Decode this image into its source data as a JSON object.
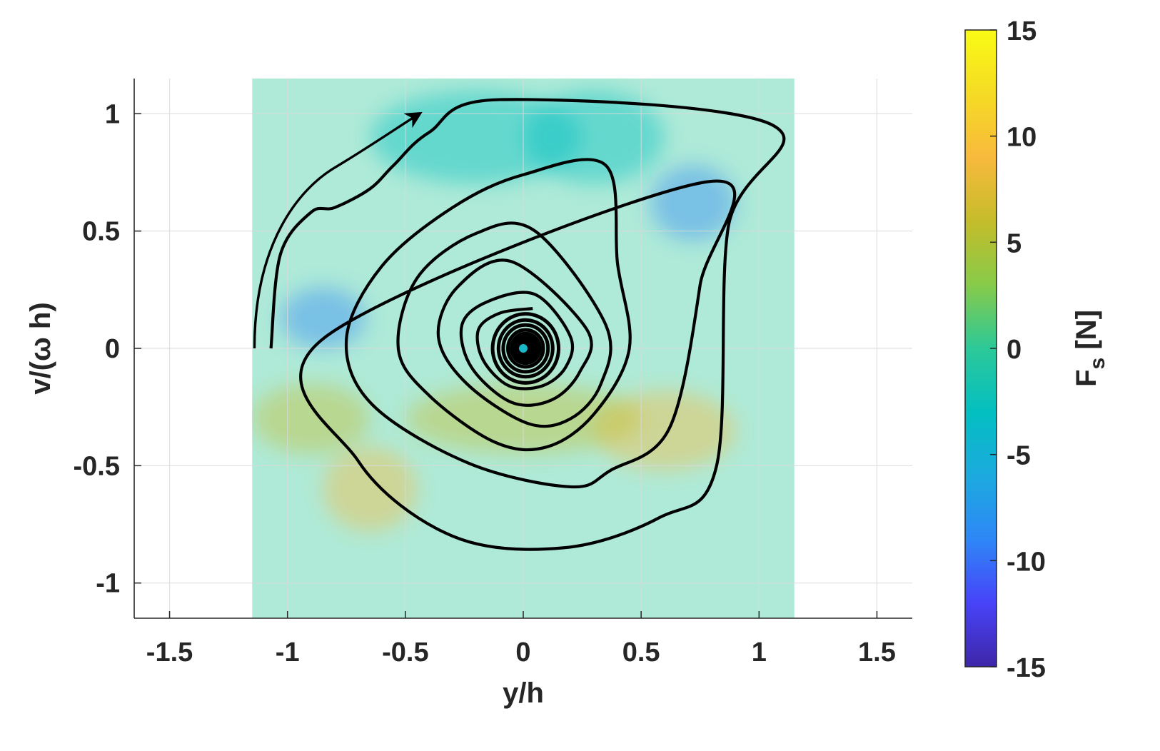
{
  "chart_data": {
    "type": "heatmap",
    "title": "",
    "xlabel": "y/h",
    "ylabel": "v/(ω h)",
    "xlim": [
      -1.65,
      1.65
    ],
    "ylim": [
      -1.15,
      1.15
    ],
    "xticks": [
      -1.5,
      -1,
      -0.5,
      0,
      0.5,
      1,
      1.5
    ],
    "xtick_labels": [
      "-1.5",
      "-1",
      "-0.5",
      "0",
      "0.5",
      "1",
      "1.5"
    ],
    "yticks": [
      -1,
      -0.5,
      0,
      0.5,
      1
    ],
    "ytick_labels": [
      "-1",
      "-0.5",
      "0",
      "0.5",
      "1"
    ],
    "grid": true,
    "heatmap_extent": {
      "x": [
        -1.15,
        1.15
      ],
      "y": [
        -1.15,
        1.15
      ]
    },
    "field_features": [
      {
        "x": 0.72,
        "y": 0.62,
        "value": -8,
        "sx": 0.18,
        "sy": 0.16
      },
      {
        "x": -0.85,
        "y": 0.13,
        "value": -8,
        "sx": 0.18,
        "sy": 0.13
      },
      {
        "x": -0.2,
        "y": 0.9,
        "value": -4,
        "sx": 0.45,
        "sy": 0.2
      },
      {
        "x": 0.3,
        "y": 0.9,
        "value": -4,
        "sx": 0.3,
        "sy": 0.2
      },
      {
        "x": -0.65,
        "y": -0.6,
        "value": 9,
        "sx": 0.2,
        "sy": 0.18
      },
      {
        "x": 0.6,
        "y": -0.35,
        "value": 8,
        "sx": 0.3,
        "sy": 0.17
      },
      {
        "x": -0.9,
        "y": -0.3,
        "value": 5,
        "sx": 0.25,
        "sy": 0.15
      },
      {
        "x": 0.0,
        "y": -0.3,
        "value": 5,
        "sx": 0.5,
        "sy": 0.15
      }
    ],
    "colorbar": {
      "label": "F",
      "label_subscript": "s",
      "label_unit": "[N]",
      "range": [
        -15,
        15
      ],
      "ticks": [
        15,
        10,
        5,
        0,
        -5,
        -10,
        -15
      ],
      "tick_labels": [
        "15",
        "10",
        "5",
        "0",
        "-5",
        "-10",
        "-15"
      ],
      "colormap": [
        "#3e26a8",
        "#4743f8",
        "#2e87f7",
        "#1caadf",
        "#03bfc1",
        "#2cc898",
        "#87cb49",
        "#c5bc2a",
        "#f8ba3c",
        "#f5db24",
        "#f9fb15"
      ]
    },
    "trajectory": {
      "type": "spiral",
      "start": [
        -1.07,
        0.0
      ],
      "center": [
        0.0,
        0.0
      ],
      "loops": [
        {
          "x": [
            1.06,
            0.87,
            0.82,
            0.58,
            0.17,
            -0.3,
            -0.7,
            -0.85
          ],
          "y": [
            0.95,
            0.52,
            -0.5,
            -0.72,
            -0.85,
            -0.8,
            -0.48,
            0.04
          ]
        },
        {
          "x": [
            0.78,
            0.75,
            0.62,
            0.37,
            0.2,
            -0.23,
            -0.64,
            -0.75,
            -0.6,
            -0.3,
            0.0,
            0.35
          ],
          "y": [
            0.71,
            0.27,
            -0.34,
            -0.52,
            -0.59,
            -0.49,
            -0.24,
            0.04,
            0.35,
            0.6,
            0.74,
            0.78
          ]
        },
        {
          "x": [
            0.4,
            0.45,
            0.3,
            0.1,
            -0.12,
            -0.4,
            -0.53,
            -0.45,
            -0.2,
            0.05
          ],
          "y": [
            0.36,
            0.0,
            -0.28,
            -0.42,
            -0.4,
            -0.2,
            0.0,
            0.3,
            0.49,
            0.5
          ]
        },
        {
          "x": [
            0.35,
            0.33,
            0.2,
            0.02,
            -0.24,
            -0.36,
            -0.28,
            -0.05
          ],
          "y": [
            0.1,
            -0.15,
            -0.3,
            -0.32,
            -0.15,
            0.05,
            0.26,
            0.37
          ]
        },
        {
          "x": [
            0.27,
            0.24,
            0.12,
            -0.05,
            -0.22,
            -0.26,
            -0.15,
            0.05
          ],
          "y": [
            0.08,
            -0.1,
            -0.22,
            -0.23,
            -0.08,
            0.1,
            0.2,
            0.23
          ]
        },
        {
          "x": [
            0.2,
            0.18,
            0.08,
            -0.06,
            -0.17,
            -0.19,
            -0.1,
            0.04
          ],
          "y": [
            0.05,
            -0.08,
            -0.16,
            -0.16,
            -0.05,
            0.08,
            0.15,
            0.17
          ]
        }
      ],
      "arrow": {
        "from": [
          -1.14,
          0.0
        ],
        "to": [
          -0.44,
          1.0
        ]
      }
    }
  }
}
